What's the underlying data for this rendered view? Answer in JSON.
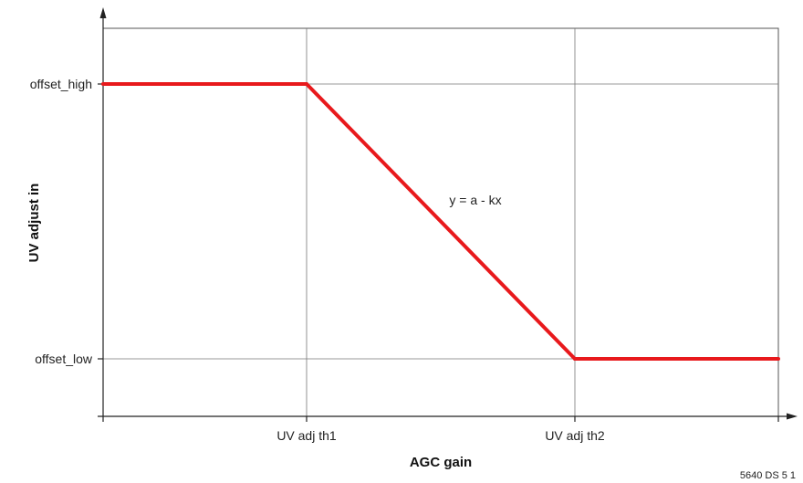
{
  "chart_data": {
    "type": "line",
    "title": "",
    "xlabel": "AGC gain",
    "ylabel": "UV adjust in",
    "x_ticks": [
      "UV adj th1",
      "UV adj th2"
    ],
    "y_ticks": [
      "offset_high",
      "offset_low"
    ],
    "grid": true,
    "series": [
      {
        "color": "#e8191c",
        "points": [
          {
            "x": "start",
            "y": "offset_high"
          },
          {
            "x": "UV adj th1",
            "y": "offset_high"
          },
          {
            "x": "UV adj th2",
            "y": "offset_low"
          },
          {
            "x": "end",
            "y": "offset_low"
          }
        ]
      }
    ],
    "annotation": "y = a - kx",
    "footer": "5640 DS 5 1"
  }
}
